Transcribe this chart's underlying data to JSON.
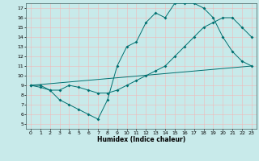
{
  "line1_x": [
    0,
    1,
    2,
    3,
    4,
    5,
    6,
    7,
    8,
    9,
    10,
    11,
    12,
    13,
    14,
    15,
    16,
    17,
    18,
    19,
    20,
    21,
    22,
    23
  ],
  "line1_y": [
    9,
    9,
    8.5,
    7.5,
    7,
    6.5,
    6,
    5.5,
    7.5,
    11,
    13,
    13.5,
    15.5,
    16.5,
    16,
    17.5,
    17.5,
    17.5,
    17,
    16,
    14,
    12.5,
    11.5,
    11
  ],
  "line2_x": [
    0,
    1,
    2,
    3,
    4,
    5,
    6,
    7,
    8,
    9,
    10,
    11,
    12,
    13,
    14,
    15,
    16,
    17,
    18,
    19,
    20,
    21,
    22,
    23
  ],
  "line2_y": [
    9,
    8.8,
    8.5,
    8.5,
    9,
    8.8,
    8.5,
    8.2,
    8.2,
    8.5,
    9,
    9.5,
    10,
    10.5,
    11,
    12,
    13,
    14,
    15,
    15.5,
    16,
    16,
    15,
    14
  ],
  "line3_x": [
    0,
    23
  ],
  "line3_y": [
    9,
    11
  ],
  "bg_color": "#c8eaea",
  "grid_color": "#f0b8b8",
  "line_color": "#007070",
  "xlabel": "Humidex (Indice chaleur)",
  "xlim": [
    -0.5,
    23.5
  ],
  "ylim": [
    4.5,
    17.5
  ],
  "yticks": [
    5,
    6,
    7,
    8,
    9,
    10,
    11,
    12,
    13,
    14,
    15,
    16,
    17
  ],
  "xticks": [
    0,
    1,
    2,
    3,
    4,
    5,
    6,
    7,
    8,
    9,
    10,
    11,
    12,
    13,
    14,
    15,
    16,
    17,
    18,
    19,
    20,
    21,
    22,
    23
  ],
  "tick_labelsize": 4.5,
  "xlabel_fontsize": 5.5,
  "linewidth": 0.7,
  "markersize": 2.0
}
